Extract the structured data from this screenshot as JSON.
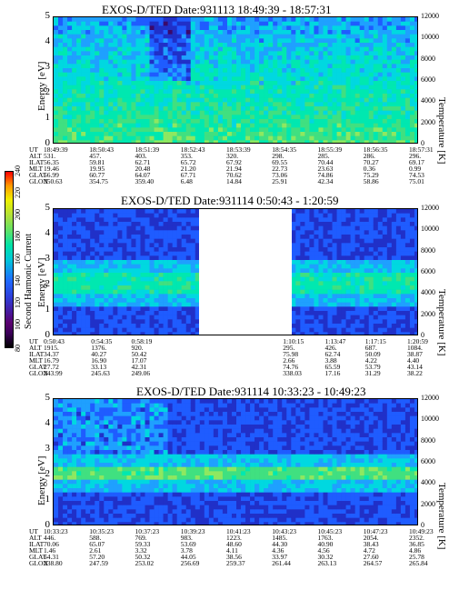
{
  "chart_data": [
    {
      "type": "heatmap",
      "title": "EXOS-D/TED  Date:931113  18:49:39 - 18:57:31",
      "ylabel": "Energy [eV]",
      "y2label": "Temperature [K]",
      "ylim": [
        0,
        5
      ],
      "y2lim": [
        0,
        12000
      ],
      "yticks": [
        "0",
        "1",
        "2",
        "3",
        "4",
        "5"
      ],
      "y2ticks": [
        "0",
        "2000",
        "4000",
        "6000",
        "8000",
        "10000",
        "12000"
      ],
      "ephemeris": {
        "labels": [
          "UT",
          "ALT",
          "ILAT",
          "MLT",
          "GLAT",
          "GLON"
        ],
        "columns": [
          [
            "18:49:39",
            "531.",
            "56.35",
            "19.46",
            "56.99",
            "350.63"
          ],
          [
            "18:50:43",
            "457.",
            "59.81",
            "19.95",
            "60.77",
            "354.75"
          ],
          [
            "18:51:39",
            "403.",
            "62.71",
            "20.48",
            "64.07",
            "359.40"
          ],
          [
            "18:52:43",
            "353.",
            "65.72",
            "21.20",
            "67.71",
            "6.48"
          ],
          [
            "18:53:39",
            "320.",
            "67.92",
            "21.94",
            "70.62",
            "14.84"
          ],
          [
            "18:54:35",
            "298.",
            "69.55",
            "22.73",
            "73.06",
            "25.91"
          ],
          [
            "18:55:39",
            "285.",
            "70.44",
            "23.63",
            "74.86",
            "42.34"
          ],
          [
            "18:56:35",
            "286.",
            "70.27",
            "0.36",
            "75.29",
            "58.86"
          ],
          [
            "18:57:31",
            "296.",
            "69.17",
            "0.99",
            "74.53",
            "75.01"
          ]
        ]
      }
    },
    {
      "type": "heatmap",
      "title": "EXOS-D/TED  Date:931114  0:50:43 - 1:20:59",
      "ylabel": "Energy [eV]",
      "y2label": "Temperature [K]",
      "ylim": [
        0,
        5
      ],
      "y2lim": [
        0,
        12000
      ],
      "yticks": [
        "0",
        "1",
        "2",
        "3",
        "4",
        "5"
      ],
      "y2ticks": [
        "0",
        "2000",
        "4000",
        "6000",
        "8000",
        "10000",
        "12000"
      ],
      "colorbar": {
        "label": "Second Harmonic Current",
        "ticks": [
          "80",
          "100",
          "120",
          "140",
          "160",
          "180",
          "200",
          "220",
          "240"
        ]
      },
      "ephemeris": {
        "labels": [
          "UT",
          "ALT",
          "ILAT",
          "MLT",
          "GLAT",
          "GLON"
        ],
        "columns": [
          [
            "0:50:43",
            "1915.",
            "34.37",
            "16.79",
            "27.72",
            "243.99"
          ],
          [
            "0:54:35",
            "1376.",
            "40.27",
            "16.90",
            "33.13",
            "245.63"
          ],
          [
            "0:58:19",
            "920.",
            "50.42",
            "17.07",
            "42.31",
            "249.06"
          ],
          [
            "1:10:15",
            "295.",
            "75.98",
            "2.66",
            "74.76",
            "338.03"
          ],
          [
            "1:13:47",
            "426.",
            "62.74",
            "3.88",
            "65.59",
            "17.16"
          ],
          [
            "1:17:15",
            "687.",
            "50.09",
            "4.22",
            "53.79",
            "31.29"
          ],
          [
            "1:20:59",
            "1084.",
            "38.87",
            "4.40",
            "43.14",
            "38.22"
          ]
        ]
      }
    },
    {
      "type": "heatmap",
      "title": "EXOS-D/TED  Date:931114  10:33:23 - 10:49:23",
      "ylabel": "Energy [eV]",
      "y2label": "Temperature [K]",
      "ylim": [
        0,
        5
      ],
      "y2lim": [
        0,
        12000
      ],
      "yticks": [
        "0",
        "1",
        "2",
        "3",
        "4",
        "5"
      ],
      "y2ticks": [
        "0",
        "2000",
        "4000",
        "6000",
        "8000",
        "10000",
        "12000"
      ],
      "ephemeris": {
        "labels": [
          "UT",
          "ALT",
          "ILAT",
          "MLT",
          "GLAT",
          "GLON"
        ],
        "columns": [
          [
            "10:33:23",
            "446.",
            "70.06",
            "1.46",
            "64.31",
            "238.80"
          ],
          [
            "10:35:23",
            "588.",
            "65.07",
            "2.61",
            "57.20",
            "247.59"
          ],
          [
            "10:37:23",
            "769.",
            "59.33",
            "3.32",
            "50.32",
            "253.02"
          ],
          [
            "10:39:23",
            "983.",
            "53.69",
            "3.78",
            "44.05",
            "256.69"
          ],
          [
            "10:41:23",
            "1223.",
            "48.60",
            "4.11",
            "38.56",
            "259.37"
          ],
          [
            "10:43:23",
            "1485.",
            "44.30",
            "4.36",
            "33.97",
            "261.44"
          ],
          [
            "10:45:23",
            "1763.",
            "40.90",
            "4.56",
            "30.32",
            "263.13"
          ],
          [
            "10:47:23",
            "2054.",
            "38.43",
            "4.72",
            "27.60",
            "264.57"
          ],
          [
            "10:49:23",
            "2352.",
            "36.85",
            "4.86",
            "25.78",
            "265.84"
          ]
        ]
      }
    }
  ]
}
